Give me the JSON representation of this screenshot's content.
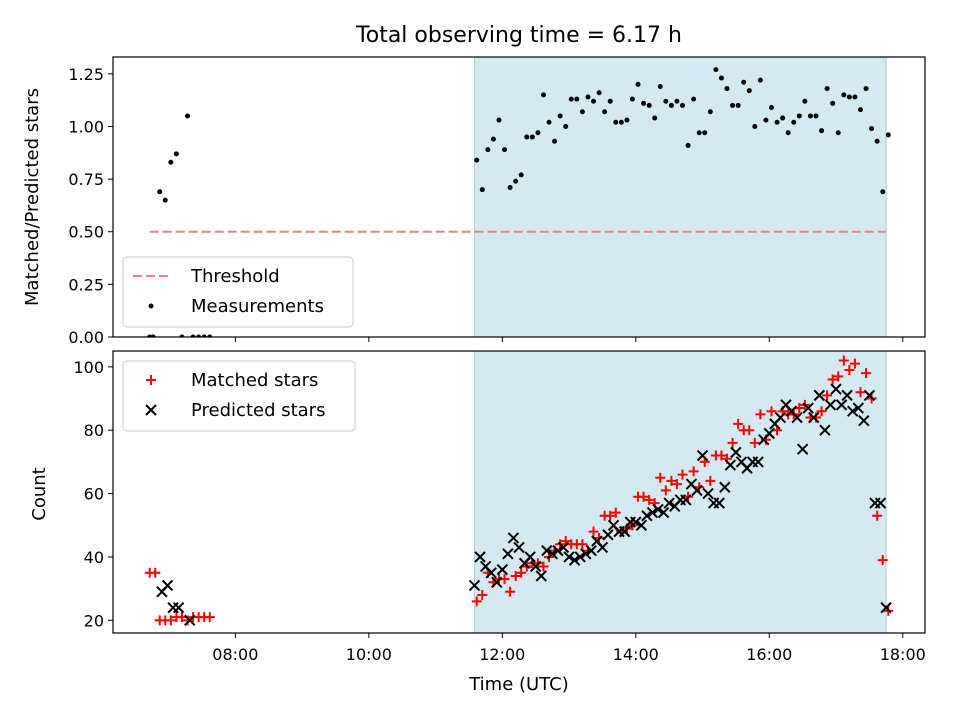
{
  "chart_data": [
    {
      "type": "scatter",
      "title": "Total observing time = 6.17 h",
      "ylabel": "Matched/Predicted stars",
      "xlabel": "",
      "xlim": [
        "06:10",
        "18:20"
      ],
      "ylim": [
        0,
        1.33
      ],
      "x_ticks": [
        "08:00",
        "10:00",
        "12:00",
        "14:00",
        "16:00",
        "18:00"
      ],
      "y_ticks": [
        "0.00",
        "0.25",
        "0.50",
        "0.75",
        "1.00",
        "1.25"
      ],
      "highlight_span": [
        "11:35",
        "17:45"
      ],
      "highlight_color": "#d4eaf0",
      "threshold": {
        "name": "Threshold",
        "value": 0.5,
        "x_range": [
          "06:43",
          "17:45"
        ],
        "color": "#f08080"
      },
      "legend_position": "lower-left",
      "series": [
        {
          "name": "Measurements",
          "color": "#000000",
          "points": [
            [
              "06:43",
              0.0
            ],
            [
              "06:46",
              0.0
            ],
            [
              "06:52",
              0.69
            ],
            [
              "06:57",
              0.65
            ],
            [
              "07:02",
              0.83
            ],
            [
              "07:07",
              0.87
            ],
            [
              "07:12",
              0.0
            ],
            [
              "07:17",
              1.05
            ],
            [
              "07:22",
              0.0
            ],
            [
              "07:27",
              0.0
            ],
            [
              "07:32",
              0.0
            ],
            [
              "07:37",
              0.0
            ],
            [
              "11:37",
              0.84
            ],
            [
              "11:42",
              0.7
            ],
            [
              "11:47",
              0.89
            ],
            [
              "11:52",
              0.94
            ],
            [
              "11:57",
              1.03
            ],
            [
              "12:02",
              0.89
            ],
            [
              "12:07",
              0.71
            ],
            [
              "12:12",
              0.74
            ],
            [
              "12:17",
              0.77
            ],
            [
              "12:22",
              0.95
            ],
            [
              "12:27",
              0.95
            ],
            [
              "12:32",
              0.97
            ],
            [
              "12:37",
              1.15
            ],
            [
              "12:42",
              1.02
            ],
            [
              "12:47",
              0.93
            ],
            [
              "12:52",
              1.05
            ],
            [
              "12:57",
              1.0
            ],
            [
              "13:02",
              1.13
            ],
            [
              "13:07",
              1.13
            ],
            [
              "13:12",
              1.07
            ],
            [
              "13:17",
              1.14
            ],
            [
              "13:22",
              1.12
            ],
            [
              "13:27",
              1.16
            ],
            [
              "13:32",
              1.07
            ],
            [
              "13:37",
              1.12
            ],
            [
              "13:42",
              1.02
            ],
            [
              "13:47",
              1.02
            ],
            [
              "13:52",
              1.03
            ],
            [
              "13:57",
              1.13
            ],
            [
              "14:02",
              1.2
            ],
            [
              "14:07",
              1.11
            ],
            [
              "14:12",
              1.1
            ],
            [
              "14:17",
              1.04
            ],
            [
              "14:22",
              1.19
            ],
            [
              "14:27",
              1.12
            ],
            [
              "14:32",
              1.1
            ],
            [
              "14:37",
              1.12
            ],
            [
              "14:42",
              1.1
            ],
            [
              "14:47",
              0.91
            ],
            [
              "14:52",
              1.13
            ],
            [
              "14:57",
              0.97
            ],
            [
              "15:02",
              0.97
            ],
            [
              "15:07",
              1.07
            ],
            [
              "15:12",
              1.27
            ],
            [
              "15:17",
              1.23
            ],
            [
              "15:22",
              1.18
            ],
            [
              "15:27",
              1.1
            ],
            [
              "15:32",
              1.1
            ],
            [
              "15:37",
              1.21
            ],
            [
              "15:42",
              1.17
            ],
            [
              "15:47",
              1.0
            ],
            [
              "15:52",
              1.22
            ],
            [
              "15:57",
              1.03
            ],
            [
              "16:02",
              1.09
            ],
            [
              "16:07",
              1.02
            ],
            [
              "16:12",
              1.04
            ],
            [
              "16:17",
              0.97
            ],
            [
              "16:22",
              1.02
            ],
            [
              "16:27",
              1.05
            ],
            [
              "16:32",
              1.12
            ],
            [
              "16:37",
              1.05
            ],
            [
              "16:42",
              1.05
            ],
            [
              "16:47",
              0.98
            ],
            [
              "16:52",
              1.18
            ],
            [
              "16:57",
              1.11
            ],
            [
              "17:02",
              0.97
            ],
            [
              "17:07",
              1.15
            ],
            [
              "17:12",
              1.14
            ],
            [
              "17:17",
              1.14
            ],
            [
              "17:22",
              1.08
            ],
            [
              "17:27",
              1.18
            ],
            [
              "17:32",
              0.99
            ],
            [
              "17:37",
              0.93
            ],
            [
              "17:42",
              0.69
            ],
            [
              "17:47",
              0.96
            ]
          ]
        }
      ]
    },
    {
      "type": "scatter",
      "title": "",
      "ylabel": "Count",
      "xlabel": "Time (UTC)",
      "xlim": [
        "06:10",
        "18:20"
      ],
      "ylim": [
        16,
        105
      ],
      "x_ticks": [
        "08:00",
        "10:00",
        "12:00",
        "14:00",
        "16:00",
        "18:00"
      ],
      "y_ticks": [
        "20",
        "40",
        "60",
        "80",
        "100"
      ],
      "highlight_span": [
        "11:35",
        "17:45"
      ],
      "highlight_color": "#d4eaf0",
      "legend_position": "upper-left",
      "series": [
        {
          "name": "Matched stars",
          "marker": "plus",
          "color": "#ff0000",
          "points": [
            [
              "06:43",
              35
            ],
            [
              "06:48",
              35
            ],
            [
              "06:52",
              20
            ],
            [
              "06:57",
              20
            ],
            [
              "07:02",
              20
            ],
            [
              "07:07",
              21
            ],
            [
              "07:12",
              21
            ],
            [
              "07:17",
              20
            ],
            [
              "07:22",
              21
            ],
            [
              "07:27",
              21
            ],
            [
              "07:32",
              21
            ],
            [
              "07:37",
              21
            ],
            [
              "11:37",
              26
            ],
            [
              "11:42",
              28
            ],
            [
              "11:47",
              35
            ],
            [
              "11:52",
              32
            ],
            [
              "11:57",
              33
            ],
            [
              "12:02",
              33
            ],
            [
              "12:07",
              29
            ],
            [
              "12:12",
              34
            ],
            [
              "12:17",
              35
            ],
            [
              "12:22",
              37
            ],
            [
              "12:27",
              38
            ],
            [
              "12:32",
              38
            ],
            [
              "12:37",
              37
            ],
            [
              "12:42",
              40
            ],
            [
              "12:47",
              42
            ],
            [
              "12:52",
              44
            ],
            [
              "12:57",
              45
            ],
            [
              "13:02",
              44
            ],
            [
              "13:07",
              44
            ],
            [
              "13:12",
              44
            ],
            [
              "13:17",
              42
            ],
            [
              "13:22",
              48
            ],
            [
              "13:27",
              46
            ],
            [
              "13:32",
              53
            ],
            [
              "13:37",
              53
            ],
            [
              "13:42",
              54
            ],
            [
              "13:47",
              48
            ],
            [
              "13:52",
              49
            ],
            [
              "13:57",
              50
            ],
            [
              "14:02",
              59
            ],
            [
              "14:07",
              59
            ],
            [
              "14:12",
              58
            ],
            [
              "14:17",
              57
            ],
            [
              "14:22",
              65
            ],
            [
              "14:27",
              61
            ],
            [
              "14:32",
              64
            ],
            [
              "14:37",
              63
            ],
            [
              "14:42",
              66
            ],
            [
              "14:47",
              59
            ],
            [
              "14:52",
              67
            ],
            [
              "14:57",
              62
            ],
            [
              "15:02",
              70
            ],
            [
              "15:07",
              64
            ],
            [
              "15:12",
              72
            ],
            [
              "15:17",
              72
            ],
            [
              "15:22",
              71
            ],
            [
              "15:27",
              76
            ],
            [
              "15:32",
              82
            ],
            [
              "15:37",
              80
            ],
            [
              "15:42",
              80
            ],
            [
              "15:47",
              76
            ],
            [
              "15:52",
              85
            ],
            [
              "15:57",
              77
            ],
            [
              "16:02",
              86
            ],
            [
              "16:07",
              80
            ],
            [
              "16:12",
              86
            ],
            [
              "16:17",
              85
            ],
            [
              "16:22",
              85
            ],
            [
              "16:27",
              87
            ],
            [
              "16:32",
              88
            ],
            [
              "16:37",
              84
            ],
            [
              "16:42",
              84
            ],
            [
              "16:47",
              86
            ],
            [
              "16:52",
              91
            ],
            [
              "16:57",
              96
            ],
            [
              "17:02",
              97
            ],
            [
              "17:07",
              102
            ],
            [
              "17:12",
              99
            ],
            [
              "17:17",
              101
            ],
            [
              "17:22",
              92
            ],
            [
              "17:27",
              98
            ],
            [
              "17:32",
              90
            ],
            [
              "17:37",
              53
            ],
            [
              "17:42",
              39
            ],
            [
              "17:47",
              23
            ]
          ]
        },
        {
          "name": "Predicted stars",
          "marker": "x",
          "color": "#000000",
          "points": [
            [
              "06:54",
              29
            ],
            [
              "06:59",
              31
            ],
            [
              "07:04",
              24
            ],
            [
              "07:09",
              24
            ],
            [
              "07:19",
              20
            ],
            [
              "11:35",
              31
            ],
            [
              "11:40",
              40
            ],
            [
              "11:45",
              37
            ],
            [
              "11:50",
              35
            ],
            [
              "11:55",
              32
            ],
            [
              "12:00",
              36
            ],
            [
              "12:05",
              41
            ],
            [
              "12:10",
              46
            ],
            [
              "12:15",
              43
            ],
            [
              "12:20",
              38
            ],
            [
              "12:25",
              40
            ],
            [
              "12:30",
              37
            ],
            [
              "12:35",
              34
            ],
            [
              "12:40",
              42
            ],
            [
              "12:45",
              41
            ],
            [
              "12:50",
              42
            ],
            [
              "12:55",
              43
            ],
            [
              "13:00",
              40
            ],
            [
              "13:05",
              39
            ],
            [
              "13:10",
              40
            ],
            [
              "13:15",
              41
            ],
            [
              "13:20",
              42
            ],
            [
              "13:25",
              45
            ],
            [
              "13:30",
              43
            ],
            [
              "13:35",
              47
            ],
            [
              "13:40",
              50
            ],
            [
              "13:45",
              48
            ],
            [
              "13:50",
              48
            ],
            [
              "13:55",
              51
            ],
            [
              "14:00",
              51
            ],
            [
              "14:05",
              50
            ],
            [
              "14:10",
              53
            ],
            [
              "14:15",
              54
            ],
            [
              "14:20",
              55
            ],
            [
              "14:25",
              54
            ],
            [
              "14:30",
              57
            ],
            [
              "14:35",
              56
            ],
            [
              "14:40",
              58
            ],
            [
              "14:45",
              58
            ],
            [
              "14:50",
              63
            ],
            [
              "14:55",
              61
            ],
            [
              "15:00",
              72
            ],
            [
              "15:05",
              60
            ],
            [
              "15:10",
              57
            ],
            [
              "15:15",
              57
            ],
            [
              "15:20",
              62
            ],
            [
              "15:25",
              69
            ],
            [
              "15:30",
              73
            ],
            [
              "15:35",
              70
            ],
            [
              "15:40",
              68
            ],
            [
              "15:45",
              70
            ],
            [
              "15:50",
              70
            ],
            [
              "15:55",
              77
            ],
            [
              "16:00",
              79
            ],
            [
              "16:05",
              82
            ],
            [
              "16:10",
              84
            ],
            [
              "16:15",
              88
            ],
            [
              "16:20",
              86
            ],
            [
              "16:25",
              84
            ],
            [
              "16:30",
              74
            ],
            [
              "16:35",
              87
            ],
            [
              "16:40",
              84
            ],
            [
              "16:45",
              91
            ],
            [
              "16:50",
              80
            ],
            [
              "16:55",
              88
            ],
            [
              "17:00",
              93
            ],
            [
              "17:05",
              88
            ],
            [
              "17:10",
              91
            ],
            [
              "17:15",
              86
            ],
            [
              "17:20",
              87
            ],
            [
              "17:25",
              83
            ],
            [
              "17:30",
              91
            ],
            [
              "17:35",
              57
            ],
            [
              "17:40",
              57
            ],
            [
              "17:45",
              24
            ]
          ]
        }
      ]
    }
  ]
}
